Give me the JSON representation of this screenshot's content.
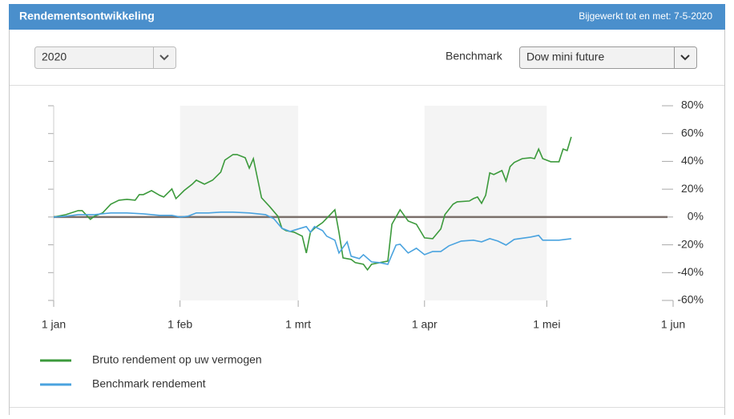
{
  "header": {
    "title": "Rendementsontwikkeling",
    "updated": "Bijgewerkt tot en met: 7-5-2020"
  },
  "controls": {
    "year": "2020",
    "benchmark_label": "Benchmark",
    "benchmark": "Dow mini future"
  },
  "chart_data": {
    "type": "line",
    "xlim": [
      0,
      152
    ],
    "xticks": [
      {
        "value": 0,
        "label": "1 jan"
      },
      {
        "value": 31,
        "label": "1 feb"
      },
      {
        "value": 60,
        "label": "1 mrt"
      },
      {
        "value": 91,
        "label": "1 apr"
      },
      {
        "value": 121,
        "label": "1 mei"
      },
      {
        "value": 152,
        "label": "1 jun"
      }
    ],
    "ylim": [
      -60,
      80
    ],
    "yticks": [
      {
        "value": -60,
        "label": "-60%"
      },
      {
        "value": -40,
        "label": "-40%"
      },
      {
        "value": -20,
        "label": "-20%"
      },
      {
        "value": 0,
        "label": "0%"
      },
      {
        "value": 20,
        "label": "20%"
      },
      {
        "value": 40,
        "label": "40%"
      },
      {
        "value": 60,
        "label": "60%"
      },
      {
        "value": 80,
        "label": "80%"
      }
    ],
    "series": [
      {
        "name": "Bruto rendement op uw vermogen",
        "color": "#3c9a3c",
        "x": [
          0,
          3,
          6,
          7,
          9,
          10,
          12,
          14,
          16,
          18,
          20,
          21,
          22,
          24,
          26,
          27,
          29,
          30,
          32,
          34,
          35,
          37,
          39,
          41,
          42,
          44,
          45,
          47,
          48,
          49,
          51,
          53,
          55,
          56,
          57,
          59,
          61,
          62,
          63,
          64,
          66,
          69,
          70,
          71,
          73,
          74,
          76,
          77,
          78,
          80,
          82,
          83,
          85,
          87,
          89,
          91,
          93,
          95,
          96,
          98,
          99,
          102,
          103,
          104,
          105,
          106,
          107,
          108,
          110,
          111,
          112,
          113,
          115,
          117,
          118,
          119,
          120,
          122,
          124,
          125,
          126,
          127
        ],
        "values": [
          0,
          1.7,
          4.6,
          4.6,
          -1.7,
          0.6,
          2.9,
          9.2,
          12.1,
          12.7,
          12.1,
          16.1,
          16.1,
          19.0,
          15.6,
          14.4,
          20.2,
          13.2,
          19.0,
          23.6,
          26.5,
          23.6,
          26.5,
          32.3,
          40.9,
          44.9,
          44.9,
          42.6,
          35.1,
          42.0,
          13.8,
          7.5,
          0.6,
          -8.1,
          -9.8,
          -10.9,
          -13.8,
          -25.9,
          -11.0,
          -8.1,
          -4.0,
          5.2,
          -11.0,
          -29.4,
          -30.5,
          -32.8,
          -34.0,
          -38.0,
          -34.0,
          -32.8,
          -31.7,
          -5.2,
          5.2,
          -2.9,
          -5.2,
          -15.0,
          -15.6,
          -8.6,
          1.7,
          9.2,
          10.9,
          11.5,
          13.2,
          14.4,
          9.8,
          15.6,
          31.7,
          30.5,
          33.4,
          25.9,
          36.3,
          39.2,
          42.0,
          42.6,
          42.0,
          48.9,
          42.0,
          39.7,
          39.7,
          48.9,
          47.8,
          57.6
        ]
      },
      {
        "name": "Benchmark rendement",
        "color": "#4aa3df",
        "x": [
          0,
          3,
          6,
          10,
          14,
          18,
          22,
          26,
          29,
          31,
          33,
          35,
          38,
          41,
          44,
          48,
          52,
          54,
          56,
          58,
          60,
          62,
          63,
          64,
          66,
          67,
          69,
          70,
          72,
          73,
          75,
          76,
          78,
          80,
          82,
          84,
          85,
          87,
          89,
          91,
          93,
          95,
          97,
          100,
          103,
          105,
          107,
          109,
          111,
          113,
          117,
          119,
          120,
          124,
          127
        ],
        "values": [
          0,
          0.6,
          1.7,
          1.7,
          2.9,
          2.9,
          2.3,
          1.2,
          1.2,
          0,
          0.6,
          2.9,
          2.9,
          3.5,
          3.5,
          2.9,
          1.7,
          -1.2,
          -8.1,
          -10.4,
          -8.6,
          -6.9,
          -11.0,
          -6.9,
          -9.8,
          -13.8,
          -16.7,
          -25.9,
          -17.9,
          -28.2,
          -29.9,
          -27.1,
          -32.3,
          -32.8,
          -34.0,
          -20.2,
          -19.6,
          -25.9,
          -22.5,
          -27.1,
          -24.8,
          -24.8,
          -20.7,
          -17.3,
          -16.7,
          -17.9,
          -15.6,
          -17.3,
          -20.2,
          -16.1,
          -14.4,
          -13.2,
          -16.7,
          -16.7,
          -15.6
        ]
      }
    ]
  }
}
